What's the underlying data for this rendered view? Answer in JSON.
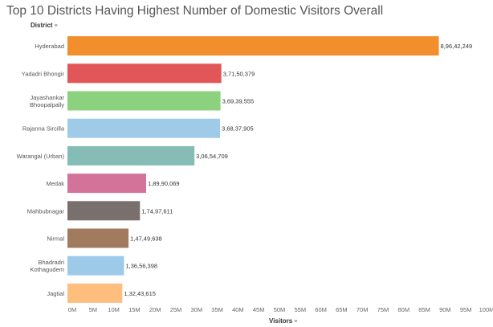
{
  "chart_data": {
    "type": "bar",
    "orientation": "horizontal",
    "title": "Top 10 Districts Having Highest Number of Domestic Visitors Overall",
    "row_header": "District",
    "xlabel": "Visitors",
    "xlim": [
      0,
      100000000
    ],
    "grid": false,
    "legend": "none",
    "categories": [
      [
        "Hyderabad"
      ],
      [
        "Yadadri Bhongir"
      ],
      [
        "Jayashankar",
        "Bhoopalpally"
      ],
      [
        "Rajanna Sircilla"
      ],
      [
        "Warangal (Urban)"
      ],
      [
        "Medak"
      ],
      [
        "Mahbubnagar"
      ],
      [
        "Nirmal"
      ],
      [
        "Bhadradri",
        "Kothagudem"
      ],
      [
        "Jagtial"
      ]
    ],
    "values": [
      89642249,
      37150379,
      36939555,
      36837905,
      30654709,
      18990069,
      17497611,
      14749638,
      13656398,
      13243615
    ],
    "value_labels": [
      "8,96,42,249",
      "3,71,50,379",
      "3,69,39,555",
      "3,68,37,905",
      "3,06,54,709",
      "1,89,90,069",
      "1,74,97,611",
      "1,47,49,638",
      "1,36,56,398",
      "1,32,43,615"
    ],
    "colors": [
      "#f28e2b",
      "#e15759",
      "#8cd17d",
      "#a0cbe8",
      "#86bcb6",
      "#d4739a",
      "#79706e",
      "#a27a5e",
      "#9ecae9",
      "#ffbe7d"
    ],
    "x_ticks": [
      0,
      5000000,
      10000000,
      15000000,
      20000000,
      25000000,
      30000000,
      35000000,
      40000000,
      45000000,
      50000000,
      55000000,
      60000000,
      65000000,
      70000000,
      75000000,
      80000000,
      85000000,
      90000000,
      95000000,
      100000000
    ],
    "x_tick_labels": [
      "0M",
      "5M",
      "10M",
      "15M",
      "20M",
      "25M",
      "30M",
      "35M",
      "40M",
      "45M",
      "50M",
      "55M",
      "60M",
      "65M",
      "70M",
      "75M",
      "80M",
      "85M",
      "90M",
      "95M",
      "100M"
    ]
  }
}
